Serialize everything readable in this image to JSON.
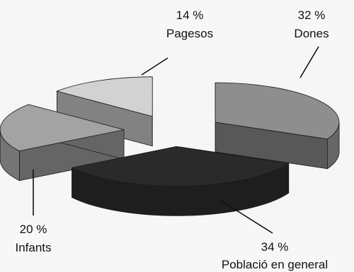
{
  "chart_data": {
    "type": "pie",
    "style": "3d-exploded",
    "legend": "none",
    "title": "",
    "slices": [
      {
        "name": "Dones",
        "value": 32,
        "value_label": "32 %",
        "color": "#8e8e8e"
      },
      {
        "name": "Població en general",
        "value": 34,
        "value_label": "34 %",
        "color": "#2a2a2a"
      },
      {
        "name": "Infants",
        "value": 20,
        "value_label": "20 %",
        "color": "#a3a3a3"
      },
      {
        "name": "Pagesos",
        "value": 14,
        "value_label": "14 %",
        "color": "#d2d2d2"
      }
    ]
  }
}
